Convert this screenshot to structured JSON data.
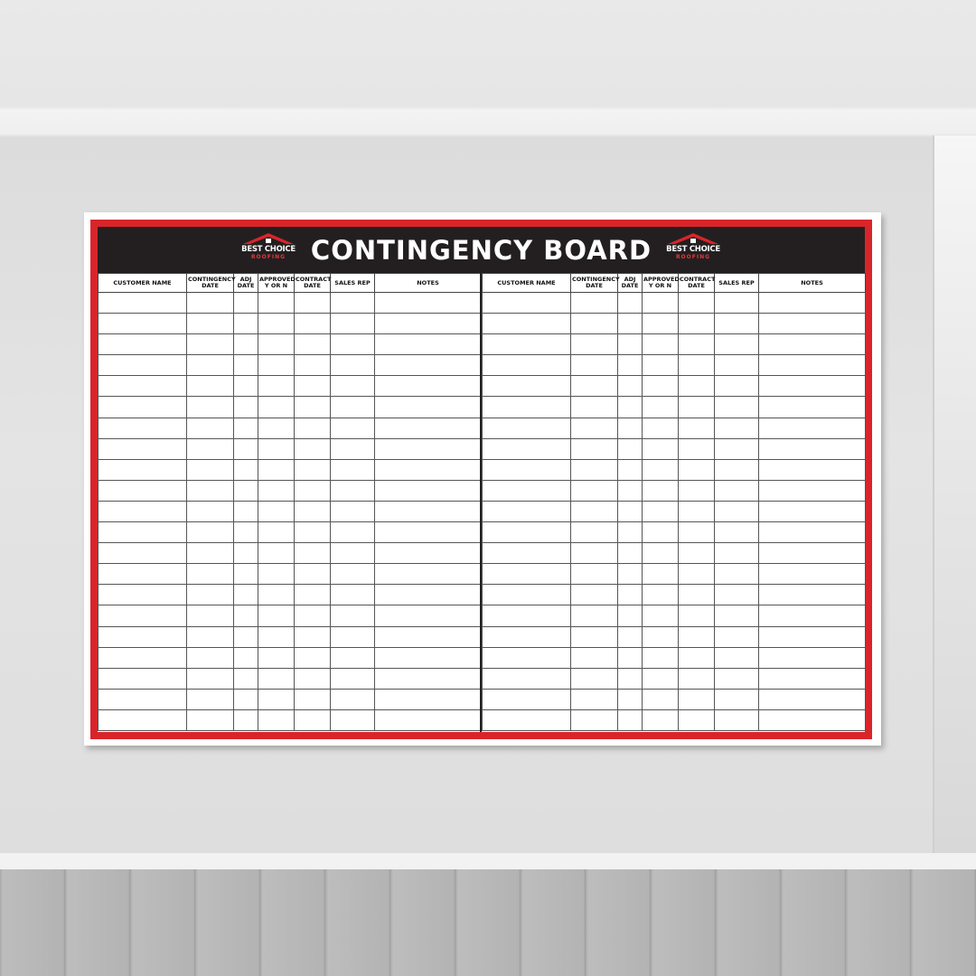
{
  "board": {
    "title": "CONTINGENCY BOARD",
    "logos": [
      {
        "name": "BEST CHOICE",
        "sub": "ROOFING"
      },
      {
        "name": "BEST CHOICE",
        "sub": "ROOFING"
      }
    ],
    "tables": [
      {
        "columns": [
          "CUSTOMER NAME",
          "CONTINGENCY DATE",
          "ADJ DATE",
          "APPROVED Y OR N",
          "CONTRACT DATE",
          "SALES REP",
          "NOTES"
        ]
      },
      {
        "columns": [
          "CUSTOMER NAME",
          "CONTINGENCY DATE",
          "ADJ DATE",
          "APPROVED Y OR N",
          "CONTRACT DATE",
          "SALES REP",
          "NOTES"
        ]
      }
    ]
  }
}
